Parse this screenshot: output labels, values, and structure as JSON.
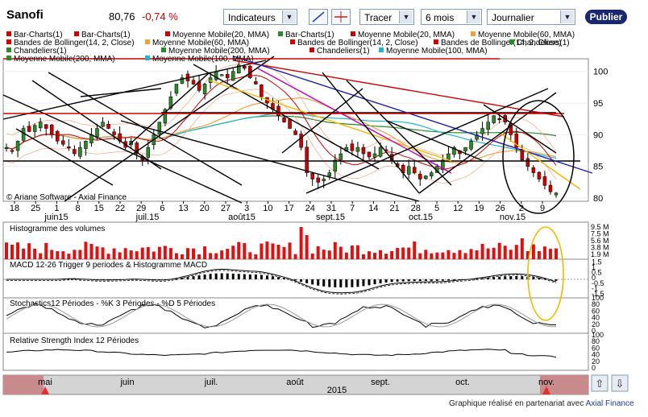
{
  "toolbar": {
    "ticker": "Sanofi",
    "price": "80,76",
    "change": "-0,74 %",
    "indicators_label": "Indicateurs",
    "draw_label": "Tracer",
    "period_value": "6 mois",
    "interval_value": "Journalier",
    "publish_label": "Publier"
  },
  "legend": [
    {
      "label": "Bar-Charts(1)",
      "color": "#d00000"
    },
    {
      "label": "Bar-Charts(1)",
      "color": "#d00000"
    },
    {
      "label": "Moyenne Mobile(20, MMA)",
      "color": "#d00000"
    },
    {
      "label": "Bar-Charts(1)",
      "color": "#2a8a2a"
    },
    {
      "label": "Moyenne Mobile(20, MMA)",
      "color": "#d00000"
    },
    {
      "label": "Moyenne Mobile(60, MMA)",
      "color": "#f0a040"
    },
    {
      "label": "Bandes de Bollinger(14, 2, Close)",
      "color": "#d00000"
    },
    {
      "label": "Moyenne Mobile(60, MMA)",
      "color": "#f0a040"
    },
    {
      "label": "Bandes de Bollinger(14, 2, Close)",
      "color": "#d00000"
    },
    {
      "label": "Bandes de Bollinger(14, 2, Close)",
      "color": "#d00000"
    },
    {
      "label": "Chandeliers(1)",
      "color": "#2a8a2a"
    },
    {
      "label": "Chandeliers(1)",
      "color": "#2a8a2a"
    },
    {
      "label": "Moyenne Mobile(200, MMA)",
      "color": "#2a8a2a"
    },
    {
      "label": "Chandeliers(1)",
      "color": "#d00000"
    },
    {
      "label": "Moyenne Mobile(100, MMA)",
      "color": "#20b8c8"
    },
    {
      "label": "Moyenne Mobile(200, MMA)",
      "color": "#2a8a2a"
    },
    {
      "label": "Moyenne Mobile(100, MMA)",
      "color": "#20b8c8"
    }
  ],
  "copyright": "© Ariane Software - Axial Finance",
  "credit": {
    "text": "Graphique réalisé en partenariat avec",
    "brand": "Axial Finance"
  },
  "chart_data": [
    {
      "type": "candlestick",
      "title": "Sanofi",
      "y_ticks": [
        80,
        85,
        90,
        95,
        100
      ],
      "ylim": [
        79.5,
        102
      ],
      "x_day_ticks": [
        "18",
        "25",
        "1",
        "8",
        "15",
        "22",
        "29",
        "6",
        "13",
        "20",
        "27",
        "3",
        "10",
        "17",
        "24",
        "31",
        "7",
        "14",
        "21",
        "28",
        "5",
        "12",
        "19",
        "26",
        "2",
        "9"
      ],
      "x_month_labels": [
        "juin15",
        "juil.15",
        "août15",
        "sept.15",
        "oct.15",
        "nov.15"
      ],
      "close_path": [
        88,
        87.5,
        89,
        91,
        90.5,
        91.5,
        92,
        91,
        90,
        89,
        88.5,
        88,
        87,
        88,
        89,
        90,
        91,
        92,
        91,
        90,
        89,
        88,
        89,
        87,
        86,
        88,
        90,
        92,
        94,
        96,
        98,
        99,
        98.5,
        98,
        97,
        98,
        99,
        100,
        99.5,
        99,
        100,
        101,
        100.5,
        99,
        98,
        96,
        95,
        94,
        93,
        92,
        91,
        90,
        88,
        84,
        83,
        82.5,
        83,
        84,
        86,
        87,
        88,
        87.5,
        88,
        87,
        86.5,
        87,
        88,
        87.5,
        86,
        85,
        84,
        85,
        84,
        83,
        83.5,
        84,
        85,
        86,
        87,
        88,
        87,
        88,
        89,
        90,
        91,
        92,
        93,
        92.5,
        92,
        90,
        88,
        86,
        85,
        84,
        83,
        82,
        81,
        80.8
      ]
    },
    {
      "type": "bar",
      "title": "Histogramme des volumes",
      "y_ticks": [
        "1.9 M",
        "3.8 M",
        "5.6 M",
        "7.5 M",
        "9.5 M"
      ]
    },
    {
      "type": "line",
      "title": "MACD 12-26   Trigger 9 periodes & Histogramme MACD",
      "y_ticks": [
        -1.5,
        -1,
        -0.5,
        0,
        0.5,
        1,
        1.5
      ]
    },
    {
      "type": "line",
      "title": "Stochastics12 Périodes  -  %K 3 Périodes  -  %D 5 Périodes",
      "y_ticks": [
        0,
        20,
        40,
        60,
        80,
        100
      ]
    },
    {
      "type": "line",
      "title": "Relative Strength Index 12 Périodes",
      "y_ticks": [
        0,
        20,
        40,
        60,
        80,
        100
      ]
    }
  ],
  "timeline": {
    "months": [
      "mai",
      "juin",
      "juil.",
      "août",
      "sept.",
      "oct.",
      "nov."
    ],
    "year": "2015"
  }
}
